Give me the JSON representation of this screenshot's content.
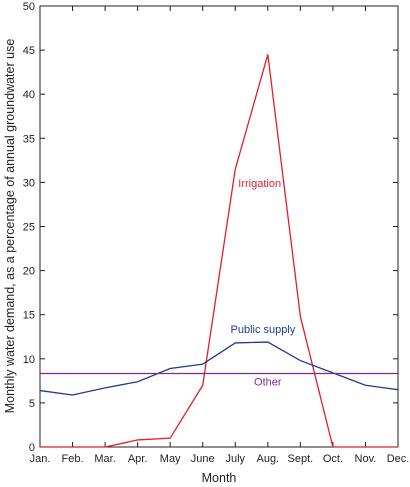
{
  "chart_data": {
    "type": "line",
    "xlabel": "Month",
    "ylabel": "Monthly water demand, as a percentage of annual groundwater use",
    "categories": [
      "Jan.",
      "Feb.",
      "Mar.",
      "Apr.",
      "May",
      "June",
      "July",
      "Aug.",
      "Sept.",
      "Oct.",
      "Nov.",
      "Dec."
    ],
    "ylim": [
      0,
      50
    ],
    "yticks": [
      0,
      5,
      10,
      15,
      20,
      25,
      30,
      35,
      40,
      45,
      50
    ],
    "grid": false,
    "series": [
      {
        "name": "Irrigation",
        "color": "#e31e2b",
        "values": [
          0,
          0,
          0,
          0.8,
          1.0,
          7.0,
          31.5,
          44.5,
          14.8,
          0,
          0,
          0
        ]
      },
      {
        "name": "Public supply",
        "color": "#1f3a93",
        "values": [
          6.4,
          5.9,
          6.7,
          7.4,
          8.9,
          9.4,
          11.8,
          11.9,
          9.8,
          8.4,
          7.0,
          6.5
        ]
      },
      {
        "name": "Other",
        "color": "#7b2d8e",
        "values": [
          8.33,
          8.33,
          8.33,
          8.33,
          8.33,
          8.33,
          8.33,
          8.33,
          8.33,
          8.33,
          8.33,
          8.33
        ]
      }
    ]
  }
}
